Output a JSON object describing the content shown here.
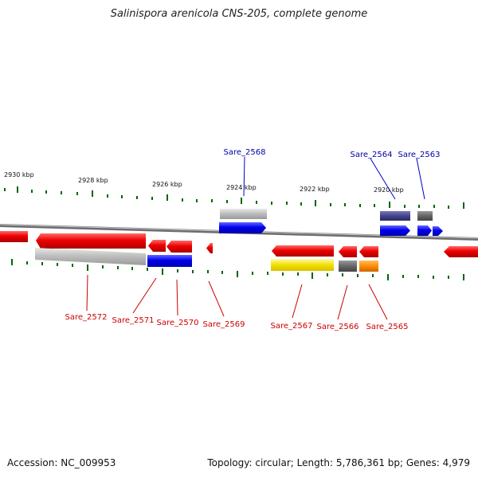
{
  "title": "Salinispora arenicola CNS-205, complete genome",
  "footer": {
    "accession": "Accession: NC_009953",
    "summary": "Topology: circular; Length: 5,786,361 bp; Genes: 4,979"
  },
  "scale_labels": [
    "2930 kbp",
    "2928 kbp",
    "2926 kbp",
    "2924 kbp",
    "2922 kbp",
    "2920 kbp"
  ],
  "gene_labels_top": [
    "Sare_2568",
    "Sare_2564",
    "Sare_2563"
  ],
  "gene_labels_bottom": [
    "Sare_2572",
    "Sare_2571",
    "Sare_2570",
    "Sare_2569",
    "Sare_2567",
    "Sare_2566",
    "Sare_2565"
  ],
  "colors": {
    "forward_gene": "#0000ee",
    "reverse_gene": "#ee0000",
    "top_label": "#0000aa",
    "bottom_label": "#cc0000",
    "tick": "#006600",
    "backbone": "#888888"
  }
}
